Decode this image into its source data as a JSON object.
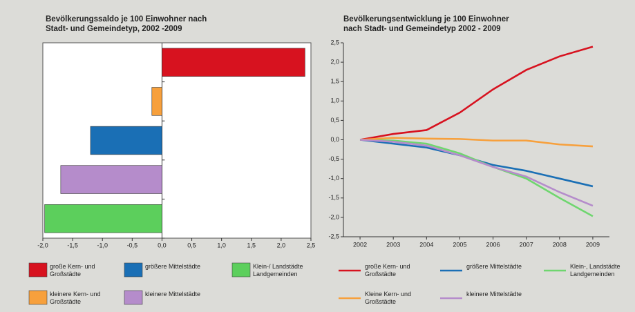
{
  "chart_data": [
    {
      "type": "hbar",
      "title": [
        "Bevölkerungssaldo je 100 Einwohner nach",
        "Stadt- und Gemeindetyp, 2002 -2009"
      ],
      "series": [
        {
          "name": "große Kern- und Großstädte",
          "color": "#d7121f",
          "values": [
            2.4
          ]
        },
        {
          "name": "kleinere Kern- und Großstädte",
          "color": "#f7a03c",
          "values": [
            -0.17
          ]
        },
        {
          "name": "größere Mittelstädte",
          "color": "#1a6fb5",
          "values": [
            -1.2
          ]
        },
        {
          "name": "kleinere Mittelstädte",
          "color": "#b58ccb",
          "values": [
            -1.7
          ]
        },
        {
          "name": "Klein-/ Landstädte Landgemeinden",
          "color": "#5ccf5c",
          "values": [
            -1.97
          ]
        }
      ],
      "xlim": [
        -2,
        2.5
      ],
      "xticks": [
        {
          "value": -2,
          "label": "-2,0"
        },
        {
          "value": -1.5,
          "label": "-1,5"
        },
        {
          "value": -1,
          "label": "-1,0"
        },
        {
          "value": -0.5,
          "label": "-0,5"
        },
        {
          "value": 0,
          "label": "0,0"
        },
        {
          "value": 0.5,
          "label": "0,5"
        },
        {
          "value": 1,
          "label": "1,0"
        },
        {
          "value": 1.5,
          "label": "1,5"
        },
        {
          "value": 2,
          "label": "2,0"
        },
        {
          "value": 2.5,
          "label": "2,5"
        }
      ]
    },
    {
      "type": "line",
      "title": [
        "Bevölkerungsentwicklung je 100 Einwohner",
        "nach Stadt- und Gemeindetyp 2002 - 2009"
      ],
      "x": [
        2002,
        2003,
        2004,
        2005,
        2006,
        2007,
        2008,
        2009
      ],
      "series": [
        {
          "name": "große Kern- und Großstädte",
          "color": "#d7121f",
          "values": [
            0,
            0.15,
            0.25,
            0.7,
            1.3,
            1.8,
            2.15,
            2.4
          ]
        },
        {
          "name": "größere Mittelstädte",
          "color": "#1a6fb5",
          "values": [
            0,
            -0.1,
            -0.2,
            -0.4,
            -0.65,
            -0.8,
            -1.0,
            -1.2
          ]
        },
        {
          "name": "Klein-, Landstädte Landgemeinden",
          "color": "#6fd66f",
          "values": [
            0,
            -0.02,
            -0.1,
            -0.35,
            -0.7,
            -1.0,
            -1.5,
            -1.97
          ]
        },
        {
          "name": "Kleine Kern- und Großstädte",
          "color": "#f7a03c",
          "values": [
            0,
            0.05,
            0.03,
            0.02,
            -0.02,
            -0.02,
            -0.12,
            -0.17
          ]
        },
        {
          "name": "kleinere Mittelstädte",
          "color": "#b58ccb",
          "values": [
            0,
            -0.05,
            -0.15,
            -0.4,
            -0.7,
            -0.95,
            -1.35,
            -1.7
          ]
        }
      ],
      "xlim": [
        2001.5,
        2009.5
      ],
      "ylim": [
        -2.5,
        2.5
      ],
      "yticks": [
        {
          "value": 2.5,
          "label": "2,5"
        },
        {
          "value": 2,
          "label": "2,0"
        },
        {
          "value": 1.5,
          "label": "1,5"
        },
        {
          "value": 1,
          "label": "1,0"
        },
        {
          "value": 0.5,
          "label": "0,5"
        },
        {
          "value": 0,
          "label": "0,0"
        },
        {
          "value": -0.5,
          "label": "-0,5"
        },
        {
          "value": -1,
          "label": "-1,0"
        },
        {
          "value": -1.5,
          "label": "-1,5"
        },
        {
          "value": -2,
          "label": "-2,0"
        },
        {
          "value": -2.5,
          "label": "-2,5"
        }
      ]
    }
  ]
}
